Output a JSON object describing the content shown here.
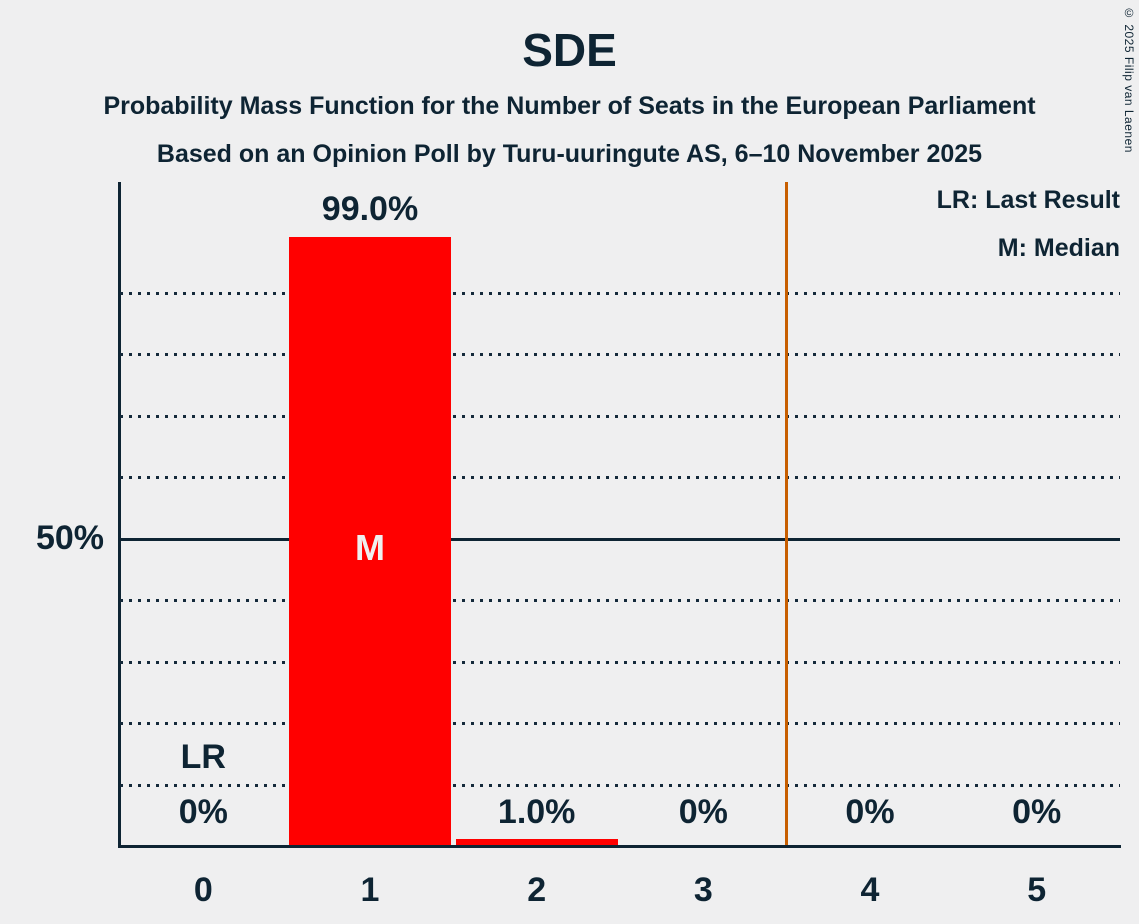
{
  "window": {
    "background": "#EFEFF0",
    "text_color": "#0E2433"
  },
  "header": {
    "title": "SDE",
    "subtitle_line1": "Probability Mass Function for the Number of Seats in the European Parliament",
    "subtitle_line2": "Based on an Opinion Poll by Turu-uuringute AS, 6–10 November 2025"
  },
  "legend": {
    "last_result": "LR: Last Result",
    "median": "M: Median"
  },
  "copyright_notice": "© 2025 Filip van Laenen",
  "chart_data": {
    "type": "bar",
    "title": "SDE",
    "categories": [
      "0",
      "1",
      "2",
      "3",
      "4",
      "5"
    ],
    "values": [
      0,
      99.0,
      1.0,
      0,
      0,
      0
    ],
    "value_labels": [
      "0%",
      "99.0%",
      "1.0%",
      "0%",
      "0%",
      "0%"
    ],
    "ylim": [
      0,
      100
    ],
    "y_axis_tick": {
      "pct": 50,
      "label": "50%"
    },
    "gridlines_pct": [
      10,
      20,
      30,
      40,
      50,
      60,
      70,
      80,
      90
    ],
    "solid_gridline_pct": 50,
    "grid_style": "dotted",
    "legend_position": "top-right",
    "bar_color": "#FF0000",
    "inside_label_color": "#EFEFF0",
    "last_result": {
      "category": "0",
      "marker": "LR"
    },
    "median": {
      "category": "1",
      "marker": "M"
    },
    "threshold_line": {
      "x": 3.5,
      "color": "#C75E00"
    }
  }
}
